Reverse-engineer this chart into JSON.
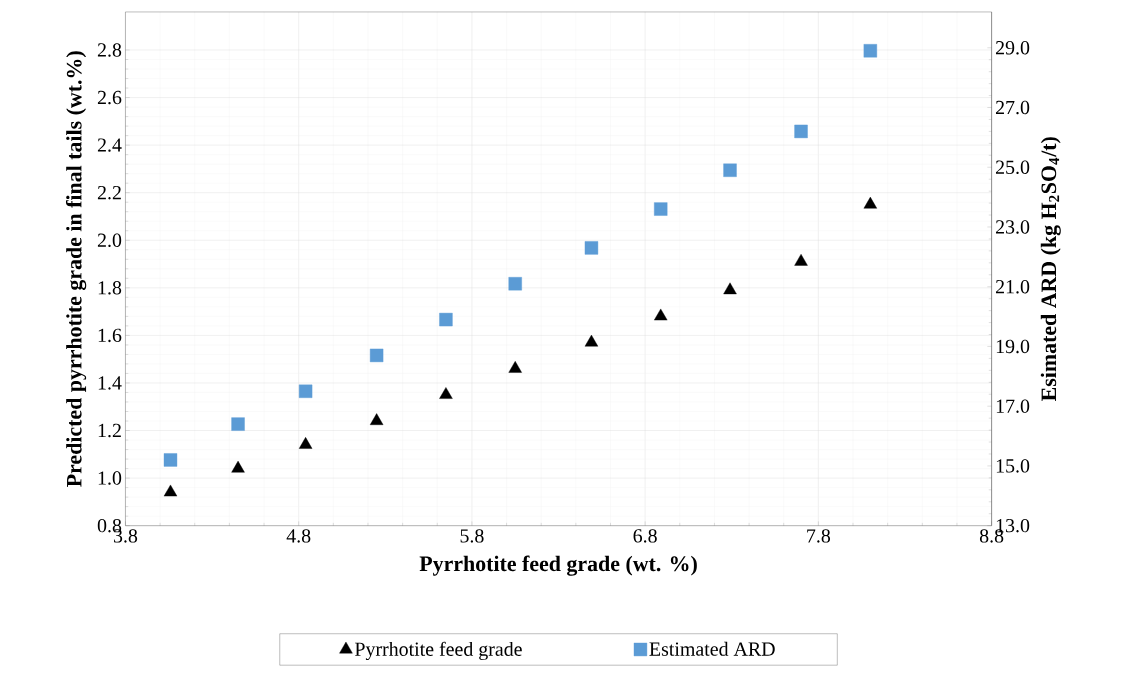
{
  "chart_data": {
    "type": "scatter",
    "xlabel": "Pyrrhotite feed grade (wt. %)",
    "ylabel": "Predicted pyrrhotite grade in final tails (wt.%)",
    "y2label": "Esimated ARD (kg H$_{2}$SO$_{4}$/t)",
    "x": [
      4.06,
      4.45,
      4.84,
      5.25,
      5.65,
      6.05,
      6.49,
      6.89,
      7.29,
      7.7,
      8.1
    ],
    "series": [
      {
        "name": "Pyrrhotite feed grade",
        "color": "#000000",
        "marker": "triangle",
        "values": [
          0.94,
          1.04,
          1.14,
          1.24,
          1.35,
          1.46,
          1.57,
          1.68,
          1.79,
          1.91,
          2.15
        ]
      },
      {
        "name": "Estimated ARD",
        "color": "#5b9bd5",
        "marker": "square",
        "axis": "y2",
        "values": [
          15.2,
          16.4,
          17.5,
          18.7,
          19.9,
          21.1,
          22.3,
          23.6,
          24.9,
          26.2,
          28.9
        ]
      }
    ],
    "xlim": [
      3.8,
      8.8
    ],
    "xticks": [
      3.8,
      4.8,
      5.8,
      6.8,
      7.8,
      8.8
    ],
    "ylim": [
      0.8,
      2.96
    ],
    "yticks": [
      {
        "value": 0.8,
        "label": "0.8"
      },
      {
        "value": 1.0,
        "label": "1.0"
      },
      {
        "value": 1.2,
        "label": "1.2"
      },
      {
        "value": 1.4,
        "label": "1.4"
      },
      {
        "value": 1.6,
        "label": "1.6"
      },
      {
        "value": 1.8,
        "label": "1.8"
      },
      {
        "value": 2.0,
        "label": "2.0"
      },
      {
        "value": 2.2,
        "label": "2.2"
      },
      {
        "value": 2.4,
        "label": "2.4"
      },
      {
        "value": 2.6,
        "label": "2.6"
      },
      {
        "value": 2.8,
        "label": "2.8"
      }
    ],
    "y2lim": [
      13.0,
      30.2
    ],
    "y2ticks": [
      {
        "value": 13.0,
        "label": "13.0"
      },
      {
        "value": 15.0,
        "label": "15.0"
      },
      {
        "value": 17.0,
        "label": "17.0"
      },
      {
        "value": 19.0,
        "label": "19.0"
      },
      {
        "value": 21.0,
        "label": "21.0"
      },
      {
        "value": 23.0,
        "label": "23.0"
      },
      {
        "value": 25.0,
        "label": "25.0"
      },
      {
        "value": 27.0,
        "label": "27.0"
      },
      {
        "value": 29.0,
        "label": "29.0"
      }
    ],
    "grid": true,
    "legend": "bottom"
  }
}
